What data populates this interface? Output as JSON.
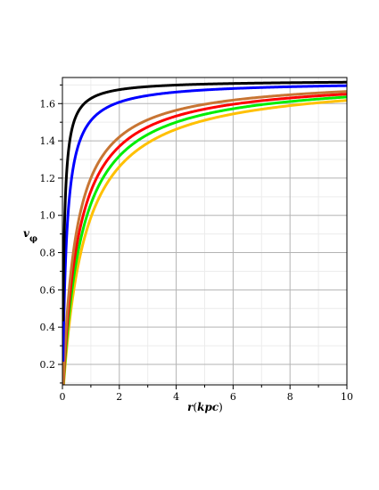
{
  "chart_data": {
    "type": "line",
    "title": "",
    "xlabel": {
      "var": "r",
      "open": "(",
      "unit": "kpc",
      "close": ")"
    },
    "ylabel": {
      "var": "v",
      "sub": "φ"
    },
    "xlim": [
      0,
      10
    ],
    "ylim": [
      0.09,
      1.74
    ],
    "x_ticks": [
      0,
      2,
      4,
      6,
      8,
      10
    ],
    "y_ticks": [
      0.2,
      0.4,
      0.6,
      0.8,
      1.0,
      1.2,
      1.4,
      1.6
    ],
    "x_tick_labels": [
      "0",
      "2",
      "4",
      "6",
      "8",
      "10"
    ],
    "y_tick_labels": [
      "0.2",
      "0.4",
      "0.6",
      "0.8",
      "1.0",
      "1.2",
      "1.4",
      "1.6"
    ],
    "grid": true,
    "legend": "none",
    "model": "v = vmax * r / (r + a)",
    "series": [
      {
        "color": "#000000",
        "vmax": 1.725,
        "a": 0.06
      },
      {
        "color": "#0000ff",
        "vmax": 1.72,
        "a": 0.14
      },
      {
        "color": "#c87533",
        "vmax": 1.74,
        "a": 0.45
      },
      {
        "color": "#ff0000",
        "vmax": 1.74,
        "a": 0.54
      },
      {
        "color": "#00ee00",
        "vmax": 1.74,
        "a": 0.64
      },
      {
        "color": "#ffc000",
        "vmax": 1.74,
        "a": 0.76
      }
    ]
  }
}
